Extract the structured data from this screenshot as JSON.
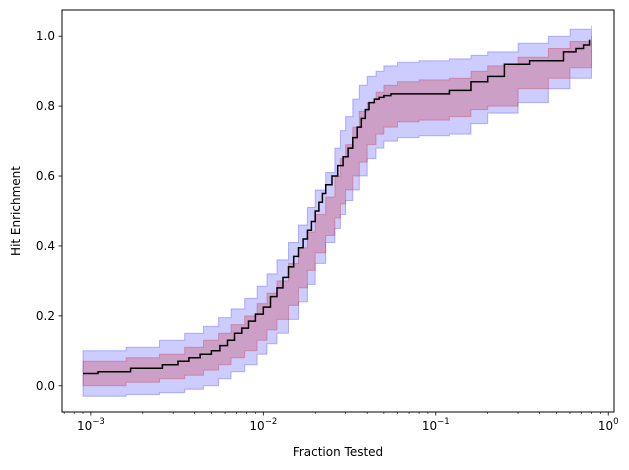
{
  "chart_data": {
    "type": "line",
    "title": "",
    "xlabel": "Fraction Tested",
    "ylabel": "Hit Enrichment",
    "xscale": "log",
    "xlim": [
      0.00068,
      1.08
    ],
    "ylim": [
      -0.075,
      1.075
    ],
    "grid": false,
    "legend": "none",
    "xticks": [
      {
        "value": 0.001,
        "base": "10",
        "exp": "−3"
      },
      {
        "value": 0.01,
        "base": "10",
        "exp": "−2"
      },
      {
        "value": 0.1,
        "base": "10",
        "exp": "−1"
      },
      {
        "value": 1,
        "base": "10",
        "exp": "0"
      }
    ],
    "yticks": [
      {
        "value": 0.0,
        "label": "0.0"
      },
      {
        "value": 0.2,
        "label": "0.2"
      },
      {
        "value": 0.4,
        "label": "0.4"
      },
      {
        "value": 0.6,
        "label": "0.6"
      },
      {
        "value": 0.8,
        "label": "0.8"
      },
      {
        "value": 1.0,
        "label": "1.0"
      }
    ],
    "colors": {
      "line": "#000000",
      "outer_band": "#0000ff",
      "inner_band": "#cc0000"
    },
    "series": [
      {
        "role": "median",
        "x": [
          0.0009,
          0.0011,
          0.0017,
          0.0026,
          0.0032,
          0.0037,
          0.0043,
          0.005,
          0.0056,
          0.0062,
          0.0068,
          0.0075,
          0.0082,
          0.009,
          0.01,
          0.011,
          0.012,
          0.013,
          0.014,
          0.015,
          0.016,
          0.017,
          0.018,
          0.019,
          0.02,
          0.021,
          0.022,
          0.023,
          0.025,
          0.027,
          0.029,
          0.031,
          0.033,
          0.035,
          0.037,
          0.039,
          0.041,
          0.044,
          0.047,
          0.05,
          0.055,
          0.12,
          0.16,
          0.2,
          0.25,
          0.35,
          0.55,
          0.65,
          0.72,
          0.78
        ],
        "y": [
          0.035,
          0.04,
          0.05,
          0.06,
          0.07,
          0.08,
          0.09,
          0.1,
          0.115,
          0.13,
          0.15,
          0.165,
          0.185,
          0.205,
          0.225,
          0.255,
          0.28,
          0.31,
          0.34,
          0.37,
          0.395,
          0.42,
          0.445,
          0.47,
          0.5,
          0.525,
          0.55,
          0.575,
          0.6,
          0.63,
          0.655,
          0.68,
          0.71,
          0.74,
          0.765,
          0.79,
          0.81,
          0.82,
          0.825,
          0.83,
          0.835,
          0.845,
          0.87,
          0.885,
          0.92,
          0.93,
          0.955,
          0.965,
          0.975,
          0.99
        ]
      }
    ],
    "bands": [
      {
        "role": "outer",
        "x": [
          0.0009,
          0.0016,
          0.0025,
          0.0035,
          0.0045,
          0.0055,
          0.0065,
          0.0078,
          0.0092,
          0.0105,
          0.012,
          0.014,
          0.016,
          0.018,
          0.02,
          0.023,
          0.026,
          0.028,
          0.03,
          0.033,
          0.036,
          0.04,
          0.045,
          0.05,
          0.06,
          0.08,
          0.12,
          0.16,
          0.2,
          0.3,
          0.45,
          0.6,
          0.8
        ],
        "upper": [
          0.1,
          0.11,
          0.13,
          0.15,
          0.17,
          0.195,
          0.22,
          0.25,
          0.285,
          0.32,
          0.36,
          0.41,
          0.46,
          0.51,
          0.56,
          0.61,
          0.68,
          0.73,
          0.77,
          0.82,
          0.86,
          0.885,
          0.9,
          0.915,
          0.925,
          0.93,
          0.935,
          0.945,
          0.955,
          0.98,
          1.0,
          1.02,
          1.03
        ],
        "lower": [
          -0.03,
          -0.025,
          -0.02,
          -0.01,
          0.0,
          0.02,
          0.04,
          0.06,
          0.09,
          0.12,
          0.15,
          0.19,
          0.24,
          0.29,
          0.35,
          0.41,
          0.45,
          0.49,
          0.53,
          0.56,
          0.6,
          0.65,
          0.68,
          0.7,
          0.71,
          0.715,
          0.72,
          0.75,
          0.78,
          0.81,
          0.85,
          0.88,
          0.94
        ]
      },
      {
        "role": "inner",
        "x": [
          0.0009,
          0.0016,
          0.0025,
          0.0035,
          0.0045,
          0.0055,
          0.0065,
          0.0078,
          0.0092,
          0.0105,
          0.012,
          0.014,
          0.016,
          0.018,
          0.02,
          0.023,
          0.026,
          0.028,
          0.03,
          0.033,
          0.036,
          0.04,
          0.045,
          0.05,
          0.06,
          0.08,
          0.12,
          0.16,
          0.2,
          0.3,
          0.45,
          0.6,
          0.8
        ],
        "upper": [
          0.07,
          0.08,
          0.09,
          0.11,
          0.13,
          0.15,
          0.175,
          0.2,
          0.235,
          0.265,
          0.3,
          0.35,
          0.395,
          0.44,
          0.49,
          0.54,
          0.6,
          0.65,
          0.69,
          0.74,
          0.785,
          0.81,
          0.84,
          0.86,
          0.87,
          0.875,
          0.88,
          0.9,
          0.915,
          0.94,
          0.965,
          0.985,
          1.0
        ],
        "lower": [
          0.0,
          0.01,
          0.02,
          0.03,
          0.045,
          0.06,
          0.08,
          0.1,
          0.13,
          0.16,
          0.19,
          0.23,
          0.28,
          0.33,
          0.38,
          0.43,
          0.48,
          0.52,
          0.56,
          0.6,
          0.64,
          0.69,
          0.72,
          0.74,
          0.755,
          0.76,
          0.77,
          0.79,
          0.8,
          0.85,
          0.88,
          0.91,
          0.96
        ]
      }
    ]
  }
}
